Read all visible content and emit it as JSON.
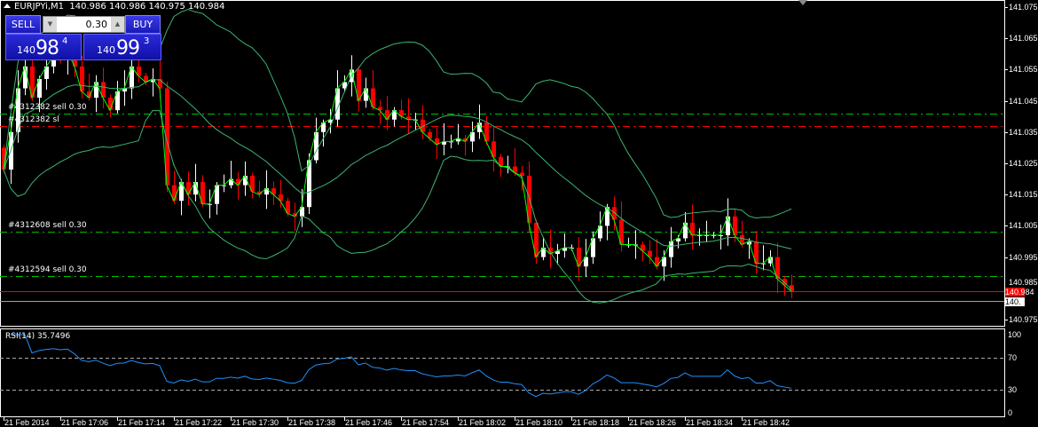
{
  "header": {
    "symbol": "EURJPYi,M1",
    "ohlc": "140.986 140.986 140.975 140.984"
  },
  "one_click": {
    "sell_label": "SELL",
    "buy_label": "BUY",
    "lot": "0.30",
    "sell_price": {
      "big": "140",
      "main": "98",
      "sup": "4"
    },
    "buy_price": {
      "big": "140",
      "main": "99",
      "sup": "3"
    }
  },
  "colors": {
    "bull": "#ffffff",
    "bear": "#ff0000",
    "close_line": "#00ff00",
    "bands": "#3cb371",
    "rsi": "#1e90ff",
    "order_line": "#00c000",
    "sl_line": "#ff0000",
    "bid_line": "#ff0000",
    "ask_line": "#a0a0a0"
  },
  "orders": [
    {
      "label": "#4312382 sell 0.30",
      "price": 141.041,
      "type": "order"
    },
    {
      "label": "#4312382 sl",
      "price": 141.037,
      "type": "sl"
    },
    {
      "label": "#4312608 sell 0.30",
      "price": 141.003,
      "type": "order"
    },
    {
      "label": "#4312594 sell 0.30",
      "price": 140.989,
      "type": "order"
    }
  ],
  "bid": {
    "price": 140.984,
    "label": "140.984"
  },
  "ask_label": "140.",
  "rsi": {
    "label": "RSI(14) 35.7496",
    "period": 14,
    "levels": [
      70,
      30
    ],
    "axis": [
      "100",
      "70",
      "30",
      "0"
    ]
  },
  "chart_data": {
    "type": "candlestick",
    "ylim": [
      140.973,
      141.075
    ],
    "y_ticks": [
      "141.075",
      "141.065",
      "141.055",
      "141.045",
      "141.035",
      "141.025",
      "141.015",
      "141.005",
      "140.995",
      "140.985",
      "140.975"
    ],
    "x_labels": [
      "21 Feb 2014",
      "21 Feb 17:06",
      "21 Feb 17:14",
      "21 Feb 17:22",
      "21 Feb 17:30",
      "21 Feb 17:38",
      "21 Feb 17:46",
      "21 Feb 17:54",
      "21 Feb 18:02",
      "21 Feb 18:10",
      "21 Feb 18:18",
      "21 Feb 18:26",
      "21 Feb 18:34",
      "21 Feb 18:42"
    ],
    "first_open": 141.03,
    "close": [
      141.023,
      141.035,
      141.049,
      141.056,
      141.046,
      141.052,
      141.056,
      141.059,
      141.058,
      141.061,
      141.056,
      141.048,
      141.046,
      141.051,
      141.046,
      141.042,
      141.048,
      141.049,
      141.056,
      141.053,
      141.051,
      141.052,
      141.049,
      141.018,
      141.013,
      141.019,
      141.015,
      141.019,
      141.012,
      141.012,
      141.018,
      141.018,
      141.02,
      141.018,
      141.021,
      141.016,
      141.015,
      141.017,
      141.015,
      141.013,
      141.009,
      141.008,
      141.011,
      141.026,
      141.035,
      141.038,
      141.039,
      141.049,
      141.051,
      141.055,
      141.045,
      141.049,
      141.043,
      141.042,
      141.039,
      141.042,
      141.04,
      141.039,
      141.039,
      141.035,
      141.033,
      141.031,
      141.032,
      141.032,
      141.033,
      141.032,
      141.035,
      141.038,
      141.032,
      141.027,
      141.024,
      141.024,
      141.022,
      141.021,
      141.006,
      140.995,
      140.998,
      140.996,
      140.997,
      140.998,
      140.998,
      140.992,
      140.995,
      141.001,
      141.005,
      141.011,
      141.007,
      140.999,
      140.999,
      140.999,
      140.997,
      140.995,
      140.992,
      140.995,
      141.0,
      141.001,
      141.006,
      141.002,
      141.002,
      141.002,
      141.002,
      141.002,
      141.008,
      141.002,
      140.999,
      141.0,
      140.993,
      140.993,
      140.995,
      140.988,
      140.986,
      140.984
    ]
  }
}
